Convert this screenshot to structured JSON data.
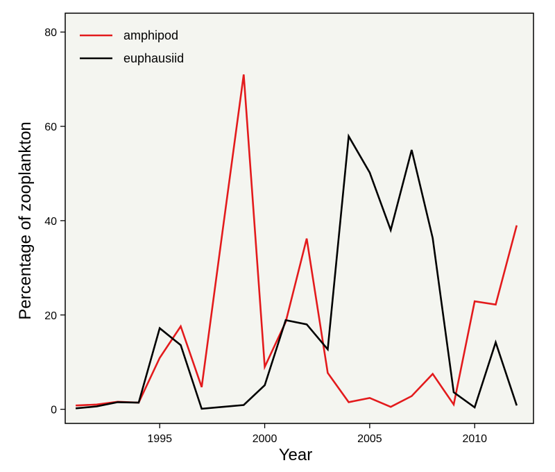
{
  "chart_data": {
    "type": "line",
    "xlabel": "Year",
    "ylabel": "Percentage of zooplankton",
    "xlim": [
      1990.5,
      2012.8
    ],
    "ylim": [
      -3,
      84
    ],
    "xticks": [
      1995,
      2000,
      2005,
      2010
    ],
    "yticks": [
      0,
      20,
      40,
      60,
      80
    ],
    "grid": false,
    "legend": "top-left",
    "background": "#f4f5f0",
    "series": [
      {
        "name": "amphipod",
        "color": "#e31a1c",
        "x": [
          1991,
          1992,
          1993,
          1994,
          1995,
          1996,
          1997,
          1998,
          1999,
          2000,
          2001,
          2002,
          2003,
          2004,
          2005,
          2006,
          2007,
          2008,
          2009,
          2010,
          2011,
          2012
        ],
        "values": [
          0.8,
          1.0,
          1.6,
          1.4,
          10.9,
          17.6,
          4.7,
          38.0,
          71.0,
          9.0,
          18.5,
          36.2,
          7.7,
          1.5,
          2.4,
          0.5,
          2.8,
          7.5,
          1.0,
          22.9,
          22.2,
          39.0
        ]
      },
      {
        "name": "euphausiid",
        "color": "#000000",
        "x": [
          1991,
          1992,
          1993,
          1994,
          1995,
          1996,
          1997,
          1998,
          1999,
          2000,
          2001,
          2002,
          2003,
          2004,
          2005,
          2006,
          2007,
          2008,
          2009,
          2010,
          2011,
          2012
        ],
        "values": [
          0.2,
          0.6,
          1.5,
          1.4,
          17.2,
          13.6,
          0.1,
          0.5,
          0.9,
          5.1,
          18.9,
          18.0,
          12.7,
          57.9,
          50.2,
          38.0,
          55.0,
          36.3,
          3.6,
          0.4,
          14.2,
          0.8
        ]
      }
    ]
  }
}
